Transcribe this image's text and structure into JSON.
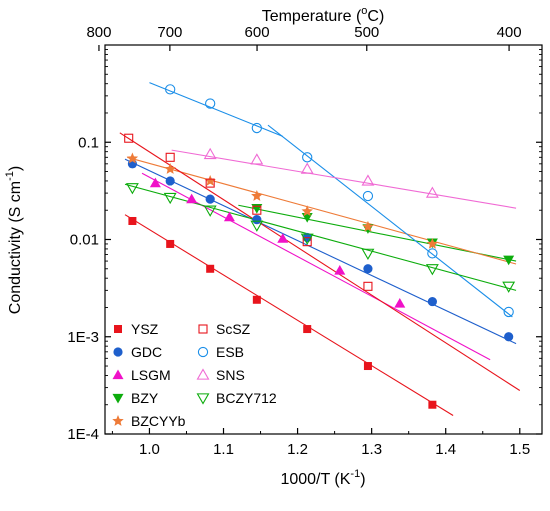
{
  "chart_data": {
    "type": "scatter",
    "xlabel": "1000/T (K",
    "xlabel_sup": "-1",
    "xlabel_close": ")",
    "ylabel": "Conductivity (S cm",
    "ylabel_sup": "-1",
    "ylabel_close": ")",
    "top_xlabel": "Temperature (",
    "top_xlabel_deg": "o",
    "top_xlabel_close": "C)",
    "xlim": [
      0.94,
      1.53
    ],
    "ylim": [
      0.0001,
      1
    ],
    "yscale": "log",
    "x_ticks": [
      1.0,
      1.1,
      1.2,
      1.3,
      1.4,
      1.5
    ],
    "x_tick_labels": [
      "1.0",
      "1.1",
      "1.2",
      "1.3",
      "1.4",
      "1.5"
    ],
    "y_ticks": [
      0.0001,
      0.001,
      0.01,
      0.1
    ],
    "y_tick_labels": [
      "1E-4",
      "1E-3",
      "0.01",
      "0.1"
    ],
    "top_ticks_celsius": [
      800,
      700,
      600,
      500,
      400
    ],
    "top_tick_labels": [
      "800",
      "700",
      "600",
      "500",
      "400"
    ],
    "legend_position": "bottom-left",
    "grid": false,
    "series": [
      {
        "name": "YSZ",
        "color": "#e8141c",
        "marker": "square",
        "filled": true,
        "x": [
          0.977,
          1.028,
          1.082,
          1.145,
          1.213,
          1.295,
          1.382
        ],
        "y": [
          0.0155,
          0.009,
          0.005,
          0.0024,
          0.0012,
          0.0005,
          0.0002
        ],
        "fit": [
          [
            0.967,
            0.018
          ],
          [
            1.41,
            0.000155
          ]
        ]
      },
      {
        "name": "GDC",
        "color": "#1e5fcc",
        "marker": "circle",
        "filled": true,
        "x": [
          0.977,
          1.028,
          1.082,
          1.145,
          1.213,
          1.295,
          1.382,
          1.485
        ],
        "y": [
          0.06,
          0.04,
          0.026,
          0.016,
          0.0105,
          0.005,
          0.0023,
          0.001
        ],
        "fit": [
          [
            0.967,
            0.067
          ],
          [
            1.495,
            0.00085
          ]
        ]
      },
      {
        "name": "LSGM",
        "color": "#f011c8",
        "marker": "triangle-up",
        "filled": true,
        "x": [
          1.008,
          1.057,
          1.108,
          1.18,
          1.257,
          1.338
        ],
        "y": [
          0.038,
          0.026,
          0.017,
          0.0102,
          0.0048,
          0.0022
        ],
        "fit": [
          [
            0.99,
            0.048
          ],
          [
            1.46,
            0.00058
          ]
        ]
      },
      {
        "name": "BZY",
        "color": "#0cac0c",
        "marker": "triangle-down",
        "filled": true,
        "x": [
          1.145,
          1.213,
          1.295,
          1.382,
          1.485
        ],
        "y": [
          0.021,
          0.017,
          0.013,
          0.0093,
          0.0062
        ],
        "fit": [
          [
            1.12,
            0.0225
          ],
          [
            1.495,
            0.006
          ]
        ]
      },
      {
        "name": "BZCYYb",
        "color": "#ee7b38",
        "marker": "star",
        "filled": true,
        "x": [
          0.977,
          1.028,
          1.082,
          1.145,
          1.213,
          1.295,
          1.382
        ],
        "y": [
          0.068,
          0.053,
          0.04,
          0.028,
          0.0195,
          0.0135,
          0.009
        ],
        "fit": [
          [
            0.97,
            0.07
          ],
          [
            1.495,
            0.0056
          ]
        ]
      },
      {
        "name": "ScSZ",
        "color": "#e8141c",
        "marker": "square",
        "filled": false,
        "x": [
          0.972,
          1.028,
          1.082,
          1.145,
          1.213,
          1.295
        ],
        "y": [
          0.11,
          0.07,
          0.038,
          0.02,
          0.0095,
          0.0033
        ],
        "fit": [
          [
            0.96,
            0.125
          ],
          [
            1.5,
            0.00028
          ]
        ]
      },
      {
        "name": "ESB",
        "color": "#1a8ee8",
        "marker": "circle",
        "filled": false,
        "x": [
          1.028,
          1.082,
          1.145,
          1.213,
          1.295,
          1.382,
          1.485
        ],
        "y": [
          0.35,
          0.25,
          0.14,
          0.07,
          0.028,
          0.0072,
          0.0018
        ],
        "fit_segments": [
          [
            [
              1.0,
              0.41
            ],
            [
              1.18,
              0.115
            ]
          ],
          [
            [
              1.16,
              0.15
            ],
            [
              1.49,
              0.0016
            ]
          ]
        ]
      },
      {
        "name": "SNS",
        "color": "#f06ad4",
        "marker": "triangle-up",
        "filled": false,
        "x": [
          1.082,
          1.145,
          1.213,
          1.295,
          1.382
        ],
        "y": [
          0.075,
          0.066,
          0.053,
          0.04,
          0.03
        ],
        "fit": [
          [
            1.03,
            0.083
          ],
          [
            1.495,
            0.021
          ]
        ]
      },
      {
        "name": "BCZY712",
        "color": "#0cac0c",
        "marker": "triangle-down",
        "filled": false,
        "x": [
          0.977,
          1.028,
          1.082,
          1.145,
          1.213,
          1.295,
          1.382,
          1.485
        ],
        "y": [
          0.034,
          0.027,
          0.02,
          0.014,
          0.0103,
          0.0072,
          0.005,
          0.0033
        ],
        "fit": [
          [
            0.967,
            0.037
          ],
          [
            1.495,
            0.003
          ]
        ]
      }
    ],
    "legend_columns": [
      [
        "YSZ",
        "GDC",
        "LSGM",
        "BZY",
        "BZCYYb"
      ],
      [
        "ScSZ",
        "ESB",
        "SNS",
        "BCZY712"
      ]
    ]
  }
}
